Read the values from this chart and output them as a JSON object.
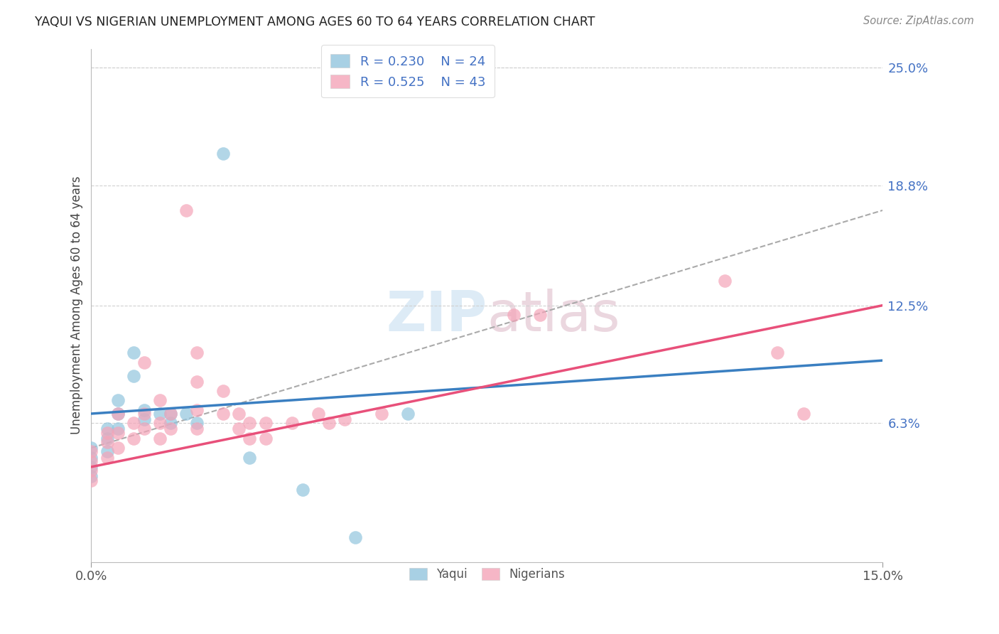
{
  "title": "YAQUI VS NIGERIAN UNEMPLOYMENT AMONG AGES 60 TO 64 YEARS CORRELATION CHART",
  "source": "Source: ZipAtlas.com",
  "ylabel": "Unemployment Among Ages 60 to 64 years",
  "xlim": [
    0.0,
    0.15
  ],
  "ylim": [
    -0.01,
    0.26
  ],
  "plot_ylim": [
    -0.01,
    0.26
  ],
  "ytick_vals_right": [
    0.063,
    0.125,
    0.188,
    0.25
  ],
  "ytick_labels_right": [
    "6.3%",
    "12.5%",
    "18.8%",
    "25.0%"
  ],
  "background_color": "#ffffff",
  "grid_color": "#d0d0d0",
  "yaqui_color": "#92c5de",
  "nigerian_color": "#f4a4b8",
  "yaqui_line_color": "#3a7fc1",
  "nigerian_line_color": "#e8507a",
  "dashed_line_color": "#aaaaaa",
  "yaqui_points": [
    [
      0.0,
      0.05
    ],
    [
      0.0,
      0.045
    ],
    [
      0.0,
      0.04
    ],
    [
      0.0,
      0.035
    ],
    [
      0.003,
      0.06
    ],
    [
      0.003,
      0.055
    ],
    [
      0.003,
      0.048
    ],
    [
      0.005,
      0.075
    ],
    [
      0.005,
      0.068
    ],
    [
      0.005,
      0.06
    ],
    [
      0.008,
      0.1
    ],
    [
      0.008,
      0.088
    ],
    [
      0.01,
      0.07
    ],
    [
      0.01,
      0.065
    ],
    [
      0.013,
      0.068
    ],
    [
      0.015,
      0.068
    ],
    [
      0.015,
      0.063
    ],
    [
      0.018,
      0.068
    ],
    [
      0.02,
      0.063
    ],
    [
      0.025,
      0.205
    ],
    [
      0.03,
      0.045
    ],
    [
      0.04,
      0.028
    ],
    [
      0.05,
      0.003
    ],
    [
      0.06,
      0.068
    ]
  ],
  "nigerian_points": [
    [
      0.0,
      0.048
    ],
    [
      0.0,
      0.043
    ],
    [
      0.0,
      0.038
    ],
    [
      0.0,
      0.033
    ],
    [
      0.003,
      0.058
    ],
    [
      0.003,
      0.053
    ],
    [
      0.003,
      0.045
    ],
    [
      0.005,
      0.068
    ],
    [
      0.005,
      0.058
    ],
    [
      0.005,
      0.05
    ],
    [
      0.008,
      0.063
    ],
    [
      0.008,
      0.055
    ],
    [
      0.01,
      0.095
    ],
    [
      0.01,
      0.068
    ],
    [
      0.01,
      0.06
    ],
    [
      0.013,
      0.075
    ],
    [
      0.013,
      0.063
    ],
    [
      0.013,
      0.055
    ],
    [
      0.015,
      0.068
    ],
    [
      0.015,
      0.06
    ],
    [
      0.018,
      0.175
    ],
    [
      0.02,
      0.1
    ],
    [
      0.02,
      0.085
    ],
    [
      0.02,
      0.07
    ],
    [
      0.02,
      0.06
    ],
    [
      0.025,
      0.08
    ],
    [
      0.025,
      0.068
    ],
    [
      0.028,
      0.068
    ],
    [
      0.028,
      0.06
    ],
    [
      0.03,
      0.063
    ],
    [
      0.03,
      0.055
    ],
    [
      0.033,
      0.063
    ],
    [
      0.033,
      0.055
    ],
    [
      0.038,
      0.063
    ],
    [
      0.043,
      0.068
    ],
    [
      0.045,
      0.063
    ],
    [
      0.048,
      0.065
    ],
    [
      0.055,
      0.068
    ],
    [
      0.08,
      0.12
    ],
    [
      0.085,
      0.12
    ],
    [
      0.12,
      0.138
    ],
    [
      0.13,
      0.1
    ],
    [
      0.135,
      0.068
    ]
  ],
  "yaqui_line": [
    0.0,
    0.15,
    0.068,
    0.096
  ],
  "nigerian_line": [
    0.0,
    0.15,
    0.04,
    0.125
  ],
  "dashed_line": [
    0.0,
    0.15,
    0.05,
    0.175
  ]
}
